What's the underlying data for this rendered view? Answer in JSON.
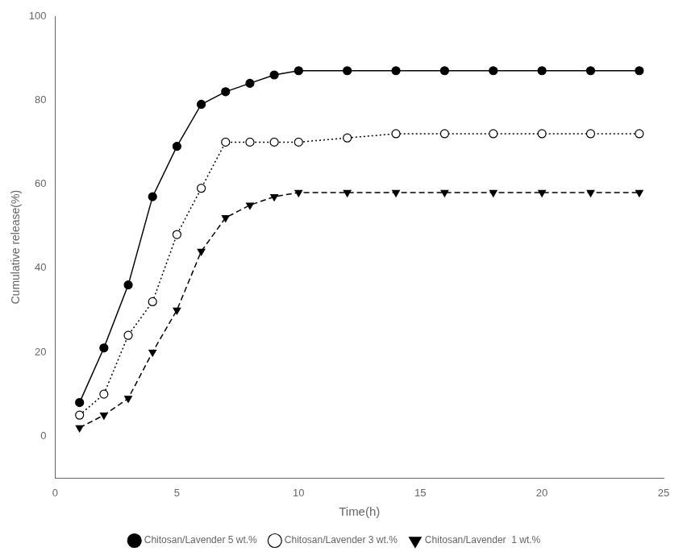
{
  "chart_data": {
    "type": "line",
    "x_label": "Time(h)",
    "y_label": "Cumulative release(%)",
    "xlim": [
      0,
      25
    ],
    "ylim": [
      -10,
      100
    ],
    "xticks": [
      0,
      5,
      10,
      15,
      20,
      25
    ],
    "yticks": [
      0,
      20,
      40,
      60,
      80,
      100
    ],
    "grid": false,
    "legend": "bottom",
    "series": [
      {
        "name": "Chitosan/Lavender 5 wt.%",
        "color": "#000000",
        "marker": "circle",
        "line_style": "solid",
        "x": [
          1,
          2,
          3,
          4,
          5,
          6,
          7,
          8,
          9,
          10,
          12,
          14,
          16,
          18,
          20,
          22,
          24
        ],
        "values": [
          8,
          21,
          36,
          57,
          69,
          79,
          82,
          84,
          86,
          87,
          87,
          87,
          87,
          87,
          87,
          87,
          87
        ]
      },
      {
        "name": "Chitosan/Lavender 3 wt.%",
        "color": "#000000",
        "marker": "open-circle",
        "line_style": "dotted",
        "x": [
          1,
          2,
          3,
          4,
          5,
          6,
          7,
          8,
          9,
          10,
          12,
          14,
          16,
          18,
          20,
          22,
          24
        ],
        "values": [
          5,
          10,
          24,
          32,
          48,
          59,
          70,
          70,
          70,
          70,
          71,
          72,
          72,
          72,
          72,
          72,
          72
        ]
      },
      {
        "name": "Chitosan/Lavender  1 wt.%",
        "color": "#000000",
        "marker": "triangle-down",
        "line_style": "dashed",
        "x": [
          1,
          2,
          3,
          4,
          5,
          6,
          7,
          8,
          9,
          10,
          12,
          14,
          16,
          18,
          20,
          22,
          24
        ],
        "values": [
          2,
          5,
          9,
          20,
          30,
          44,
          52,
          55,
          57,
          58,
          58,
          58,
          58,
          58,
          58,
          58,
          58
        ]
      }
    ]
  }
}
